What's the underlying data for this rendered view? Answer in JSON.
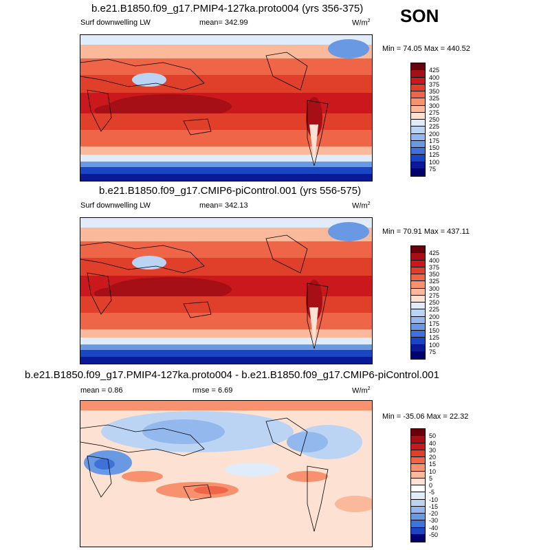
{
  "season": "SON",
  "panels": [
    {
      "title": "b.e21.B1850.f09_g17.PMIP4-127ka.proto004 (yrs 356-375)",
      "left_label": "Surf downwelling LW",
      "mid_label": "mean= 342.99",
      "units": "W/m",
      "units_sup": "2",
      "minmax": "Min =  74.05 Max = 440.52",
      "colorbar_levels": [
        "425",
        "400",
        "375",
        "350",
        "325",
        "300",
        "275",
        "250",
        "225",
        "200",
        "175",
        "150",
        "125",
        "100",
        "75"
      ]
    },
    {
      "title": "b.e21.B1850.f09_g17.CMIP6-piControl.001 (yrs 556-575)",
      "left_label": "Surf downwelling LW",
      "mid_label": "mean= 342.13",
      "units": "W/m",
      "units_sup": "2",
      "minmax": "Min =  70.91 Max = 437.11",
      "colorbar_levels": [
        "425",
        "400",
        "375",
        "350",
        "325",
        "300",
        "275",
        "250",
        "225",
        "200",
        "175",
        "150",
        "125",
        "100",
        "75"
      ]
    },
    {
      "title": "b.e21.B1850.f09_g17.PMIP4-127ka.proto004 - b.e21.B1850.f09_g17.CMIP6-piControl.001",
      "left_label": "mean =   0.86",
      "mid_label": "rmse =   6.69",
      "units": "W/m",
      "units_sup": "2",
      "minmax": "Min = -35.06 Max =  22.32",
      "colorbar_levels": [
        "50",
        "40",
        "30",
        "20",
        "15",
        "10",
        "5",
        "0",
        "-5",
        "-10",
        "-15",
        "-20",
        "-30",
        "-40",
        "-50"
      ]
    }
  ],
  "colors": {
    "abs_scale": [
      "#67000d",
      "#a50f15",
      "#cb181d",
      "#e0402a",
      "#ef6548",
      "#f7916e",
      "#fbb99c",
      "#fde1d2",
      "#e1ecfa",
      "#bcd4f4",
      "#93b8ee",
      "#6a99e4",
      "#3f72d8",
      "#1a46c4",
      "#0a1a96",
      "#00006e"
    ],
    "diff_scale": [
      "#67000d",
      "#a50f15",
      "#cb181d",
      "#e0402a",
      "#ef6548",
      "#f7916e",
      "#fbb99c",
      "#fde1d2",
      "#ffffff",
      "#e1ecfa",
      "#bcd4f4",
      "#93b8ee",
      "#6a99e4",
      "#3f72d8",
      "#1a46c4",
      "#00006e"
    ]
  }
}
